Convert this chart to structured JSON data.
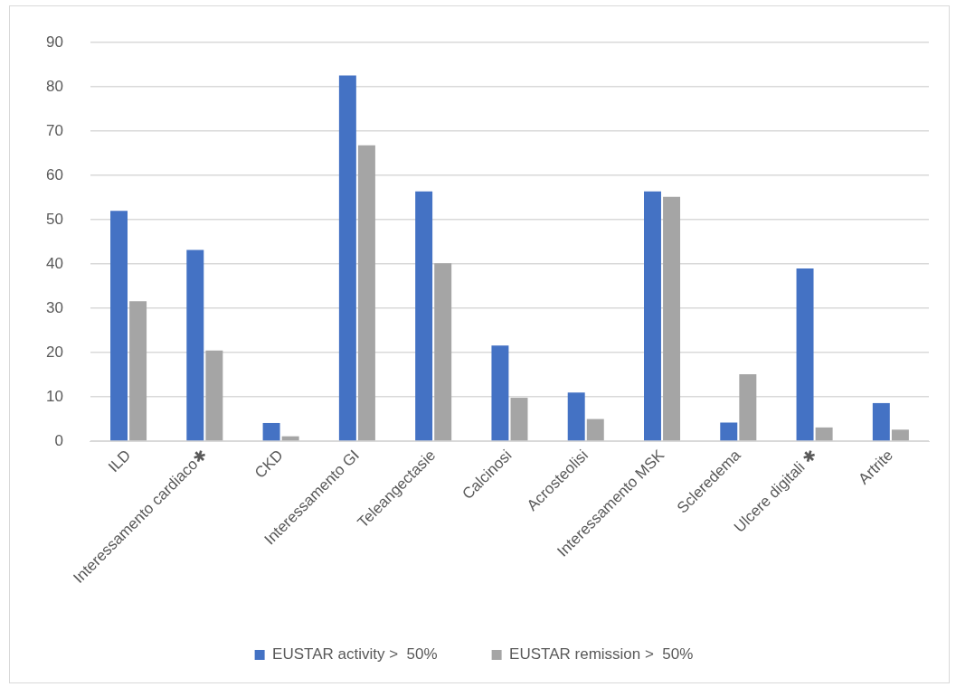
{
  "chart_data": {
    "type": "bar",
    "categories": [
      "ILD",
      "Interessamento cardiaco✱",
      "CKD",
      "Interessamento GI",
      "Teleangectasie",
      "Calcinosi",
      "Acrosteolisi",
      "Interessamento MSK",
      "Scleredema",
      "Ulcere digitali ✱",
      "Artrite"
    ],
    "series": [
      {
        "name": "EUSTAR activity >  50%",
        "color": "#4472c4",
        "values": [
          52.0,
          43.2,
          4.1,
          82.6,
          56.4,
          21.6,
          11.0,
          56.4,
          4.2,
          39.0,
          8.6
        ]
      },
      {
        "name": "EUSTAR remission >  50%",
        "color": "#a5a5a5",
        "values": [
          31.6,
          20.5,
          1.1,
          66.8,
          40.2,
          9.8,
          5.0,
          55.2,
          15.1,
          3.1,
          2.6
        ]
      }
    ],
    "ylim": [
      0,
      90
    ],
    "yticks": [
      0,
      10,
      20,
      30,
      40,
      50,
      60,
      70,
      80,
      90
    ],
    "grid": "y",
    "legend": "bottom"
  }
}
